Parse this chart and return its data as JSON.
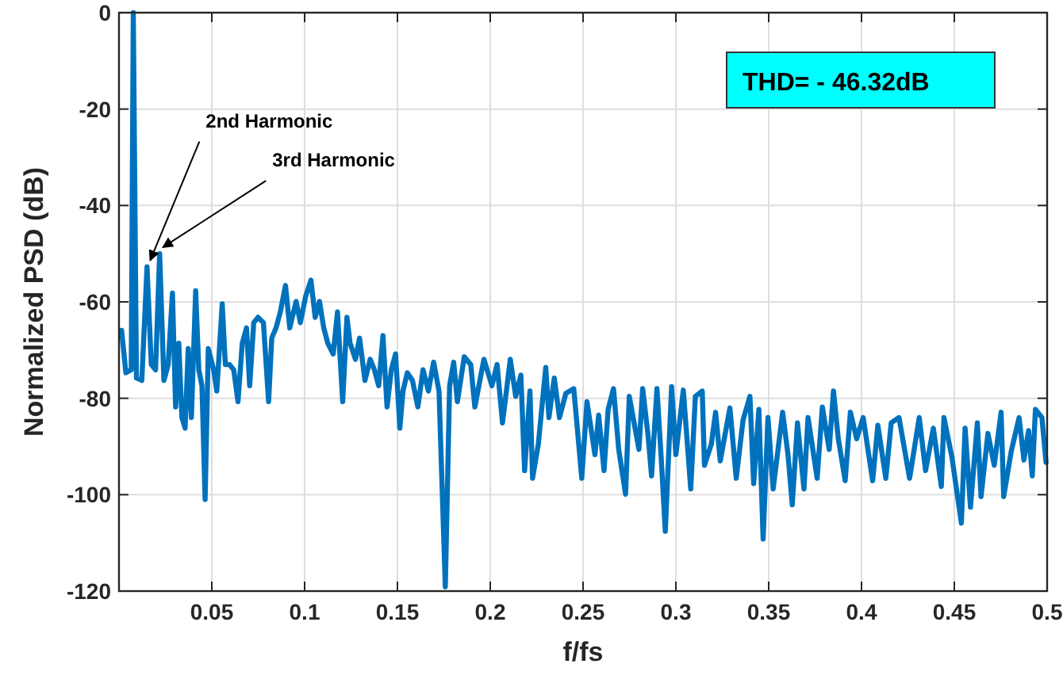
{
  "chart_data": {
    "type": "line",
    "xlabel": "f/fs",
    "ylabel": "Normalized PSD (dB)",
    "xlim": [
      0,
      0.5
    ],
    "xticks": [
      0.05,
      0.1,
      0.15,
      0.2,
      0.25,
      0.3,
      0.35,
      0.4,
      0.45,
      0.5
    ],
    "ylim": [
      -120,
      0
    ],
    "yticks": [
      -120,
      -100,
      -80,
      -60,
      -40,
      -20,
      0
    ],
    "grid": true,
    "marker": "none",
    "line_style": "solid",
    "annotations": [
      {
        "text": "2nd Harmonic",
        "x": 0.0151,
        "y": -52.7
      },
      {
        "text": "3rd Harmonic",
        "x": 0.0219,
        "y": -50.0
      },
      "THD= - 46.32dB"
    ],
    "series": [
      {
        "color": "#0072bd",
        "x": [
          0.0014,
          0.0037,
          0.0066,
          0.0077,
          0.0094,
          0.0123,
          0.0151,
          0.0174,
          0.0197,
          0.0219,
          0.0242,
          0.0265,
          0.0288,
          0.0305,
          0.0322,
          0.0339,
          0.0356,
          0.0373,
          0.039,
          0.0413,
          0.043,
          0.0447,
          0.0464,
          0.0481,
          0.051,
          0.0527,
          0.0556,
          0.0573,
          0.0595,
          0.0618,
          0.0641,
          0.0664,
          0.0687,
          0.0704,
          0.0726,
          0.0749,
          0.0778,
          0.0806,
          0.0823,
          0.0846,
          0.0869,
          0.0897,
          0.092,
          0.0954,
          0.0977,
          0.1006,
          0.1034,
          0.1057,
          0.108,
          0.1103,
          0.1125,
          0.1154,
          0.1177,
          0.1205,
          0.1228,
          0.1245,
          0.1274,
          0.1296,
          0.1325,
          0.1353,
          0.1376,
          0.1399,
          0.1422,
          0.1444,
          0.1467,
          0.149,
          0.1513,
          0.153,
          0.1553,
          0.1581,
          0.161,
          0.1638,
          0.1667,
          0.1695,
          0.1724,
          0.1758,
          0.1781,
          0.1803,
          0.1823,
          0.186,
          0.1895,
          0.1917,
          0.1966,
          0.2009,
          0.2037,
          0.2066,
          0.2108,
          0.2137,
          0.2165,
          0.2185,
          0.2214,
          0.2228,
          0.2259,
          0.2299,
          0.2316,
          0.2345,
          0.2373,
          0.2407,
          0.245,
          0.2493,
          0.2521,
          0.2564,
          0.2584,
          0.2613,
          0.2635,
          0.2664,
          0.2692,
          0.2729,
          0.2749,
          0.2801,
          0.2821,
          0.2849,
          0.2869,
          0.2898,
          0.292,
          0.2943,
          0.2977,
          0.3,
          0.304,
          0.308,
          0.3105,
          0.3142,
          0.3154,
          0.3191,
          0.3214,
          0.3239,
          0.3291,
          0.3325,
          0.3362,
          0.3399,
          0.3419,
          0.3447,
          0.347,
          0.3496,
          0.3524,
          0.3575,
          0.3604,
          0.3627,
          0.3655,
          0.369,
          0.3712,
          0.3761,
          0.3789,
          0.3826,
          0.3849,
          0.3875,
          0.3912,
          0.394,
          0.3974,
          0.4009,
          0.406,
          0.4088,
          0.4131,
          0.416,
          0.4202,
          0.4259,
          0.4311,
          0.4345,
          0.4387,
          0.443,
          0.4444,
          0.4487,
          0.4538,
          0.4558,
          0.4587,
          0.4624,
          0.4644,
          0.4681,
          0.4715,
          0.4752,
          0.4766,
          0.4806,
          0.4849,
          0.4875,
          0.49,
          0.492,
          0.4937,
          0.4972,
          0.4994
        ],
        "values": [
          -65.9,
          -74.7,
          -74.1,
          0,
          -75.8,
          -76.3,
          -52.7,
          -73.0,
          -74.1,
          -50.0,
          -76.3,
          -73.0,
          -58.2,
          -81.8,
          -68.6,
          -84.0,
          -86.2,
          -69.7,
          -84.0,
          -57.7,
          -74.1,
          -77.4,
          -101.0,
          -69.7,
          -74.1,
          -78.5,
          -60.4,
          -73.0,
          -73.0,
          -74.1,
          -80.7,
          -68.6,
          -65.4,
          -77.4,
          -64.3,
          -63.2,
          -64.3,
          -80.7,
          -67.5,
          -65.4,
          -62.1,
          -56.6,
          -65.4,
          -59.9,
          -64.3,
          -58.8,
          -55.5,
          -63.2,
          -59.9,
          -65.4,
          -68.6,
          -70.8,
          -62.1,
          -80.7,
          -63.2,
          -68.6,
          -71.9,
          -67.5,
          -76.3,
          -71.9,
          -74.1,
          -77.4,
          -67.0,
          -81.8,
          -74.1,
          -70.8,
          -86.2,
          -78.5,
          -74.7,
          -76.3,
          -81.8,
          -74.1,
          -78.5,
          -72.5,
          -78.5,
          -119.1,
          -77.4,
          -72.5,
          -80.7,
          -71.4,
          -73.0,
          -81.8,
          -71.9,
          -77.4,
          -73.0,
          -85.1,
          -71.9,
          -79.6,
          -75.2,
          -95.0,
          -78.5,
          -96.6,
          -89.5,
          -73.6,
          -84.0,
          -75.8,
          -84.0,
          -79.0,
          -78.0,
          -96.6,
          -80.7,
          -91.7,
          -83.5,
          -95.0,
          -82.3,
          -78.0,
          -90.6,
          -99.9,
          -79.6,
          -90.6,
          -78.0,
          -87.3,
          -96.1,
          -78.0,
          -91.7,
          -107.6,
          -77.6,
          -91.7,
          -78.3,
          -98.8,
          -79.6,
          -78.5,
          -93.9,
          -89.5,
          -82.9,
          -93.0,
          -82.0,
          -96.6,
          -84.5,
          -79.6,
          -97.7,
          -82.3,
          -109.2,
          -84.0,
          -98.8,
          -82.9,
          -91.7,
          -102.1,
          -85.1,
          -98.8,
          -84.0,
          -96.6,
          -81.8,
          -90.6,
          -78.5,
          -88.4,
          -97.1,
          -82.9,
          -88.4,
          -84.0,
          -97.1,
          -85.6,
          -96.6,
          -85.1,
          -84.0,
          -96.6,
          -84.0,
          -95.0,
          -86.2,
          -98.3,
          -84.0,
          -92.2,
          -105.9,
          -86.2,
          -102.6,
          -85.1,
          -100.4,
          -87.3,
          -93.9,
          -82.9,
          -100.4,
          -91.1,
          -84.0,
          -92.8,
          -86.7,
          -96.1,
          -82.3,
          -84.0,
          -93.3
        ]
      }
    ]
  }
}
